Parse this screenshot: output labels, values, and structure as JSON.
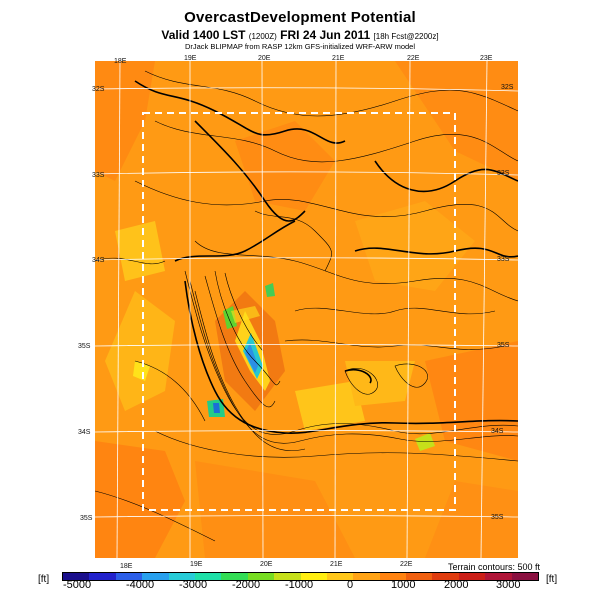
{
  "title": "OvercastDevelopment Potential",
  "subtitle": {
    "main": "Valid 1400 LST",
    "utc": "(1200Z)",
    "date": "FRI 24 Jun 2011",
    "forecast": "[18h Fcst@2200z]"
  },
  "credit": "DrJack BLIPMAP from RASP 12km GFS-initialized WRF-ARW model",
  "terrain_note": "Terrain contours: 500 ft",
  "unit_left": "[ft]",
  "unit_right": "[ft]",
  "lon_labels_top": [
    "18E",
    "19E",
    "20E",
    "21E",
    "22E",
    "23E"
  ],
  "lon_labels_bottom": [
    "18E",
    "19E",
    "20E",
    "21E",
    "22E"
  ],
  "lat_labels_left": [
    "32S",
    "33S",
    "34S",
    "35S",
    "34S",
    "35S"
  ],
  "lat_labels_right": [
    "32S",
    "33S",
    "33S",
    "35S",
    "34S",
    "35S"
  ],
  "colorbar": {
    "labels": [
      "-5000",
      "-4000",
      "-3000",
      "-2000",
      "-1000",
      "0",
      "1000",
      "2000",
      "3000"
    ],
    "colors": [
      "#1a0f8c",
      "#2222cc",
      "#2b5ee8",
      "#28a0ee",
      "#27ccd8",
      "#1ee0a8",
      "#33dd55",
      "#77dd22",
      "#c6e01a",
      "#ffee11",
      "#ffc71a",
      "#ffa315",
      "#ff8311",
      "#f06010",
      "#e03c0f",
      "#cc1f18",
      "#b01538",
      "#8a1040"
    ]
  }
}
